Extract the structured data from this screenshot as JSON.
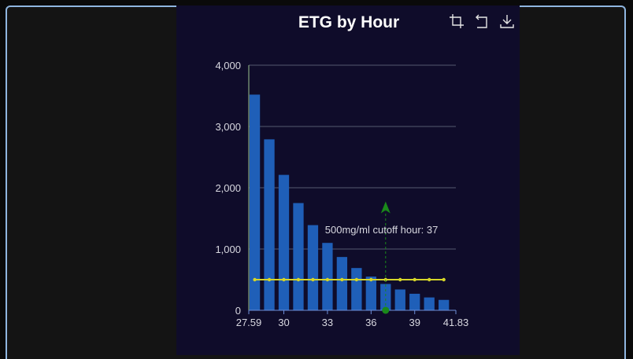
{
  "panel": {
    "toolbar": [
      {
        "name": "crop-icon",
        "label": ""
      },
      {
        "name": "undo-icon",
        "label": ""
      },
      {
        "name": "download-icon",
        "label": ""
      }
    ]
  },
  "chart_data": {
    "type": "bar",
    "title": "ETG by Hour",
    "xlabel": "",
    "ylabel": "",
    "xlim": [
      27.59,
      41.83
    ],
    "ylim": [
      0,
      4000
    ],
    "x_ticks": [
      27.59,
      30,
      33,
      36,
      39,
      41.83
    ],
    "x_tick_labels": [
      "27.59",
      "30",
      "33",
      "36",
      "39",
      "41.83"
    ],
    "y_ticks": [
      0,
      1000,
      2000,
      3000,
      4000
    ],
    "y_tick_labels": [
      "0",
      "1,000",
      "2,000",
      "3,000",
      "4,000"
    ],
    "grid": true,
    "bar_x": [
      28,
      29,
      30,
      31,
      32,
      33,
      34,
      35,
      36,
      37,
      38,
      39,
      40,
      41
    ],
    "values": [
      3520,
      2790,
      2210,
      1750,
      1390,
      1100,
      870,
      690,
      550,
      430,
      340,
      270,
      210,
      170
    ],
    "threshold": {
      "value": 500,
      "x": [
        28,
        29,
        30,
        31,
        32,
        33,
        34,
        35,
        36,
        37,
        38,
        39,
        40,
        41
      ]
    },
    "cutoff": {
      "x": 37,
      "label": "500mg/ml cutoff hour: 37",
      "arrow_top": 1750
    },
    "colors": {
      "bar": "#1f5fb8",
      "threshold": "#d6d629",
      "cutoff": "#1a8a1a",
      "axis": "#9ec48f",
      "grid": "#555a70",
      "text": "#d8d8e0"
    }
  }
}
